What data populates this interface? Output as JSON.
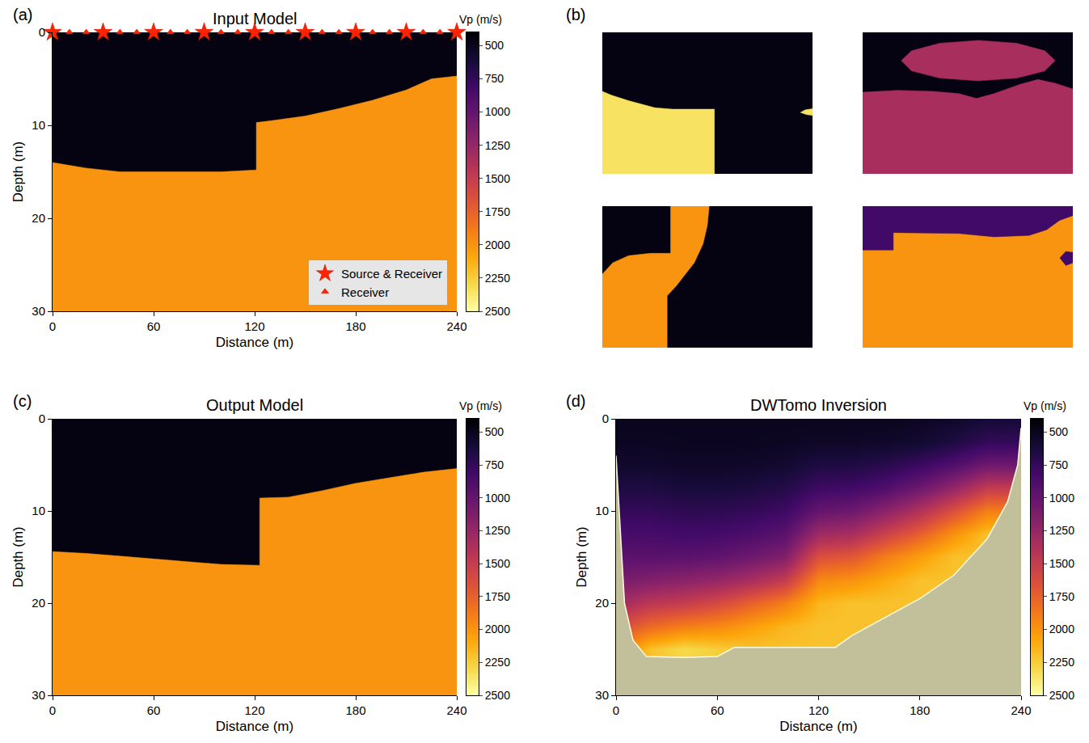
{
  "chart_data": [
    {
      "type": "polygon",
      "label": "(a)",
      "title": "Input Model",
      "xlabel": "Distance (m)",
      "ylabel": "Depth (m)",
      "xlim": [
        0,
        240
      ],
      "ylim": [
        30,
        0
      ],
      "xticks": [
        0,
        60,
        120,
        180,
        240
      ],
      "yticks": [
        0,
        10,
        20,
        30
      ],
      "background_vp": 450,
      "bodies": [
        {
          "vp": 2000,
          "x": [
            0,
            10,
            20,
            40,
            60,
            80,
            100,
            121,
            121,
            130,
            150,
            170,
            190,
            210,
            225,
            240,
            240,
            0
          ],
          "depth": [
            14,
            14.3,
            14.6,
            15,
            15,
            15,
            15,
            14.8,
            9.7,
            9.5,
            9,
            8.2,
            7.3,
            6.2,
            5,
            4.7,
            30,
            30
          ]
        }
      ],
      "sources": {
        "name": "Source & Receiver",
        "marker": "star",
        "color": "#ff2200",
        "depth": 0,
        "x": [
          0,
          30,
          60,
          90,
          120,
          150,
          180,
          210,
          240
        ]
      },
      "receivers": {
        "name": "Receiver",
        "marker": "triangle-up",
        "color": "#ff2200",
        "depth": 0,
        "x": [
          10,
          20,
          40,
          50,
          70,
          80,
          100,
          110,
          130,
          140,
          160,
          170,
          190,
          200,
          220,
          230
        ]
      },
      "legend": "bottom right",
      "colorbar": {
        "title": "Vp (m/s)",
        "clim": [
          400,
          2500
        ],
        "ticks": [
          500,
          750,
          1000,
          1250,
          1500,
          1750,
          2000,
          2250,
          2500
        ]
      }
    },
    {
      "type": "polygon",
      "label": "(b)",
      "tick_labels": false,
      "xlim": [
        0,
        240
      ],
      "ylim": [
        30,
        0
      ],
      "clim": [
        400,
        2500
      ],
      "models": [
        {
          "background_vp": 450,
          "bodies": [
            {
              "vp": 2350,
              "x": [
                0,
                10,
                30,
                60,
                80,
                128,
                128,
                0
              ],
              "depth": [
                12.5,
                13.3,
                14.5,
                16,
                16.3,
                16.3,
                30,
                30
              ]
            },
            {
              "vp": 2350,
              "x": [
                226,
                232,
                240,
                240,
                232
              ],
              "depth": [
                17,
                16.4,
                16.2,
                17.6,
                17.4
              ]
            }
          ]
        },
        {
          "background_vp": 450,
          "bodies": [
            {
              "vp": 1350,
              "x": [
                220,
                208,
                176,
                132,
                88,
                56,
                44,
                56,
                88,
                132,
                176,
                208
              ],
              "depth": [
                6,
                3.9,
                2.3,
                1.7,
                2.3,
                3.9,
                6,
                8.2,
                9.7,
                10.3,
                9.7,
                8.2
              ]
            },
            {
              "vp": 1350,
              "x": [
                0,
                0,
                40,
                80,
                110,
                130,
                150,
                180,
                200,
                220,
                240,
                240
              ],
              "depth": [
                30,
                12.7,
                12.3,
                12.5,
                13,
                14,
                13,
                11,
                10,
                10.8,
                12,
                30
              ]
            }
          ]
        },
        {
          "background_vp": 450,
          "bodies": [
            {
              "vp": 2000,
              "x": [
                0,
                0,
                12,
                30,
                55,
                78,
                78,
                122,
                120,
                115,
                105,
                92,
                84,
                74,
                74
              ],
              "depth": [
                30,
                14.4,
                12,
                10.5,
                10,
                10,
                0,
                0,
                4,
                8,
                12,
                15,
                17,
                19,
                30
              ]
            }
          ]
        },
        {
          "background_vp": 2000,
          "bodies": [
            {
              "vp": 820,
              "x": [
                0,
                240,
                240,
                225,
                210,
                190,
                150,
                110,
                35,
                35,
                0
              ],
              "depth": [
                0,
                0,
                2,
                3,
                5,
                6.2,
                6.5,
                5.8,
                5.6,
                9.3,
                9.3
              ]
            },
            {
              "vp": 820,
              "x": [
                225,
                232,
                240,
                240,
                232
              ],
              "depth": [
                11,
                9.6,
                9.8,
                12,
                12.6
              ]
            }
          ]
        }
      ]
    },
    {
      "type": "polygon",
      "label": "(c)",
      "title": "Output Model",
      "xlabel": "Distance (m)",
      "ylabel": "Depth (m)",
      "xlim": [
        0,
        240
      ],
      "ylim": [
        30,
        0
      ],
      "xticks": [
        0,
        60,
        120,
        180,
        240
      ],
      "yticks": [
        0,
        10,
        20,
        30
      ],
      "background_vp": 450,
      "bodies": [
        {
          "vp": 2000,
          "x": [
            0,
            20,
            40,
            60,
            80,
            100,
            123,
            123,
            140,
            160,
            180,
            200,
            220,
            240,
            240,
            0
          ],
          "depth": [
            14.4,
            14.6,
            14.9,
            15.2,
            15.5,
            15.8,
            15.9,
            8.6,
            8.5,
            7.8,
            7.0,
            6.4,
            5.8,
            5.4,
            30,
            30
          ]
        }
      ],
      "colorbar": {
        "title": "Vp (m/s)",
        "clim": [
          400,
          2500
        ],
        "ticks": [
          500,
          750,
          1000,
          1250,
          1500,
          1750,
          2000,
          2250,
          2500
        ]
      }
    },
    {
      "type": "heatmap",
      "label": "(d)",
      "title": "DWTomo Inversion",
      "xlabel": "Distance (m)",
      "ylabel": "Depth (m)",
      "xlim": [
        0,
        240
      ],
      "ylim": [
        30,
        0
      ],
      "xticks": [
        0,
        60,
        120,
        180,
        240
      ],
      "yticks": [
        0,
        10,
        20,
        30
      ],
      "x": [
        0,
        20,
        40,
        60,
        80,
        100,
        120,
        140,
        160,
        180,
        200,
        220,
        240
      ],
      "depth": [
        0,
        2.5,
        5,
        7.5,
        10,
        12.5,
        15,
        17.5,
        20,
        22.5,
        25,
        27.5,
        30
      ],
      "z": [
        [
          500,
          500,
          500,
          500,
          500,
          500,
          500,
          500,
          500,
          520,
          550,
          600,
          600
        ],
        [
          520,
          520,
          510,
          510,
          510,
          520,
          540,
          540,
          550,
          580,
          650,
          750,
          750
        ],
        [
          560,
          560,
          540,
          540,
          550,
          580,
          650,
          650,
          700,
          780,
          900,
          1050,
          1050
        ],
        [
          650,
          650,
          620,
          620,
          640,
          680,
          800,
          820,
          900,
          1050,
          1250,
          1500,
          1500
        ],
        [
          750,
          750,
          720,
          720,
          750,
          800,
          1000,
          1050,
          1200,
          1400,
          1650,
          1900,
          1900
        ],
        [
          850,
          850,
          820,
          830,
          880,
          950,
          1300,
          1350,
          1550,
          1750,
          2000,
          2200,
          2200
        ],
        [
          950,
          950,
          950,
          980,
          1050,
          1150,
          1650,
          1700,
          1900,
          2050,
          2200,
          2200,
          2200
        ],
        [
          1100,
          1150,
          1200,
          1250,
          1350,
          1500,
          1950,
          2000,
          2100,
          2200,
          2200,
          2200,
          2200
        ],
        [
          1300,
          1450,
          1500,
          1600,
          1750,
          1900,
          2150,
          2200,
          2200,
          2200,
          2200,
          2200,
          2200
        ],
        [
          1600,
          1800,
          1900,
          1950,
          2050,
          2150,
          2200,
          2200,
          2200,
          2200,
          2200,
          2200,
          2200
        ],
        [
          1900,
          2200,
          2300,
          2250,
          2200,
          2200,
          2200,
          2200,
          2200,
          2200,
          2200,
          2200,
          2200
        ],
        [
          2000,
          2200,
          2300,
          2250,
          2200,
          2200,
          2200,
          2200,
          2200,
          2200,
          2200,
          2200,
          2200
        ],
        [
          2000,
          2200,
          2300,
          2250,
          2200,
          2200,
          2200,
          2200,
          2200,
          2200,
          2200,
          2200,
          2200
        ]
      ],
      "coverage_boundary": {
        "x": [
          0,
          2,
          5,
          10,
          18,
          40,
          60,
          70,
          100,
          130,
          140,
          160,
          180,
          200,
          220,
          232,
          238,
          240
        ],
        "depth": [
          4,
          10,
          20,
          24,
          25.8,
          25.9,
          25.8,
          24.8,
          24.8,
          24.8,
          23.5,
          21.5,
          19.5,
          17,
          13,
          9,
          5,
          1
        ]
      },
      "colorbar": {
        "title": "Vp (m/s)",
        "clim": [
          400,
          2500
        ],
        "ticks": [
          500,
          750,
          1000,
          1250,
          1500,
          1750,
          2000,
          2250,
          2500
        ]
      }
    }
  ]
}
